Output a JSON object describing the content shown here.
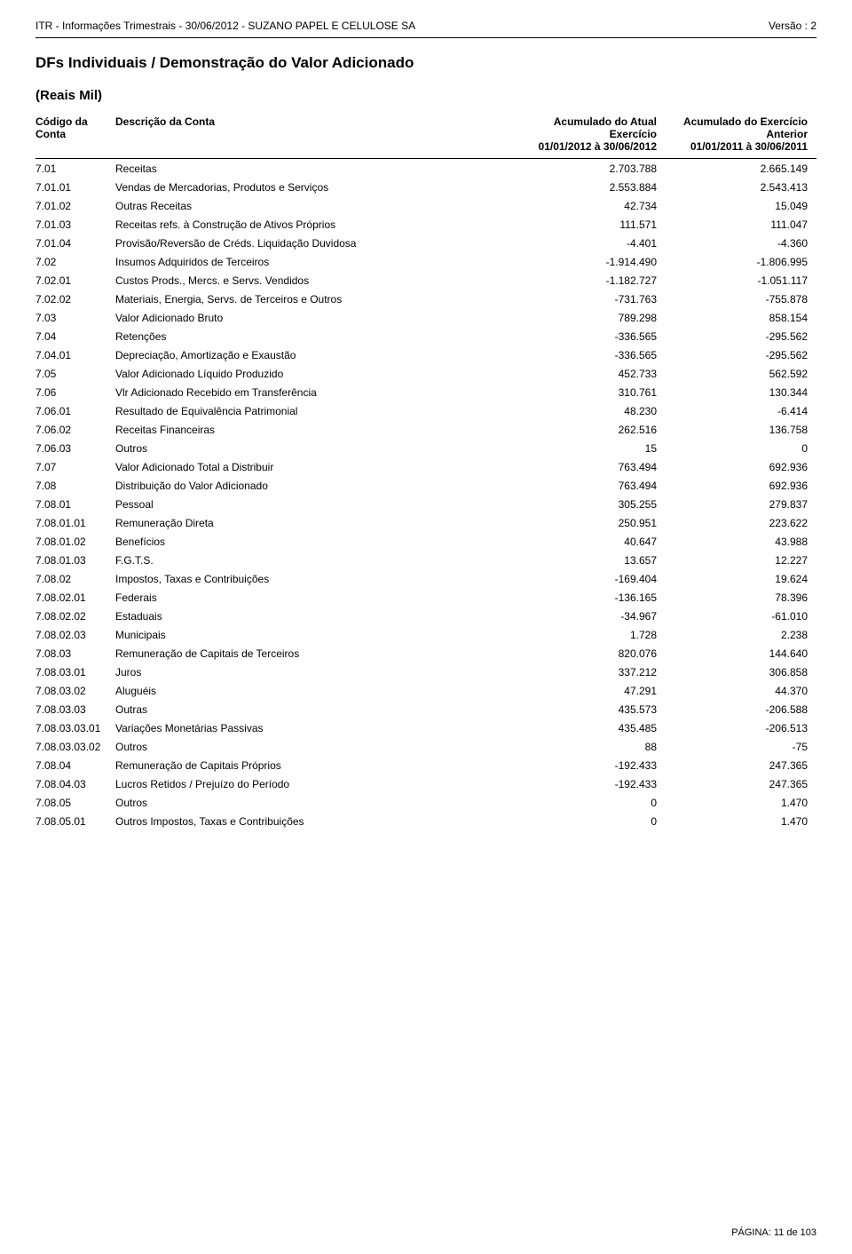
{
  "header": {
    "left": "ITR - Informações Trimestrais - 30/06/2012 - SUZANO PAPEL E CELULOSE SA",
    "right": "Versão : 2"
  },
  "title": "DFs Individuais / Demonstração do Valor Adicionado",
  "subtitle": "(Reais Mil)",
  "columns": {
    "code": "Código da Conta",
    "desc": "Descrição da Conta",
    "val1_line1": "Acumulado do Atual",
    "val1_line2": "Exercício",
    "val1_line3": "01/01/2012 à 30/06/2012",
    "val2_line1": "Acumulado do Exercício",
    "val2_line2": "Anterior",
    "val2_line3": "01/01/2011 à 30/06/2011"
  },
  "rows": [
    {
      "code": "7.01",
      "desc": "Receitas",
      "v1": "2.703.788",
      "v2": "2.665.149"
    },
    {
      "code": "7.01.01",
      "desc": "Vendas de Mercadorias, Produtos e Serviços",
      "v1": "2.553.884",
      "v2": "2.543.413"
    },
    {
      "code": "7.01.02",
      "desc": "Outras Receitas",
      "v1": "42.734",
      "v2": "15.049"
    },
    {
      "code": "7.01.03",
      "desc": "Receitas refs. à Construção de Ativos Próprios",
      "v1": "111.571",
      "v2": "111.047"
    },
    {
      "code": "7.01.04",
      "desc": "Provisão/Reversão de Créds. Liquidação Duvidosa",
      "v1": "-4.401",
      "v2": "-4.360"
    },
    {
      "code": "7.02",
      "desc": "Insumos Adquiridos de Terceiros",
      "v1": "-1.914.490",
      "v2": "-1.806.995"
    },
    {
      "code": "7.02.01",
      "desc": "Custos Prods., Mercs. e Servs. Vendidos",
      "v1": "-1.182.727",
      "v2": "-1.051.117"
    },
    {
      "code": "7.02.02",
      "desc": "Materiais, Energia, Servs. de Terceiros e Outros",
      "v1": "-731.763",
      "v2": "-755.878"
    },
    {
      "code": "7.03",
      "desc": "Valor Adicionado Bruto",
      "v1": "789.298",
      "v2": "858.154"
    },
    {
      "code": "7.04",
      "desc": "Retenções",
      "v1": "-336.565",
      "v2": "-295.562"
    },
    {
      "code": "7.04.01",
      "desc": "Depreciação, Amortização e Exaustão",
      "v1": "-336.565",
      "v2": "-295.562"
    },
    {
      "code": "7.05",
      "desc": "Valor Adicionado Líquido Produzido",
      "v1": "452.733",
      "v2": "562.592"
    },
    {
      "code": "7.06",
      "desc": "Vlr Adicionado Recebido em Transferência",
      "v1": "310.761",
      "v2": "130.344"
    },
    {
      "code": "7.06.01",
      "desc": "Resultado de Equivalência Patrimonial",
      "v1": "48.230",
      "v2": "-6.414"
    },
    {
      "code": "7.06.02",
      "desc": "Receitas Financeiras",
      "v1": "262.516",
      "v2": "136.758"
    },
    {
      "code": "7.06.03",
      "desc": "Outros",
      "v1": "15",
      "v2": "0"
    },
    {
      "code": "7.07",
      "desc": "Valor Adicionado Total a Distribuir",
      "v1": "763.494",
      "v2": "692.936"
    },
    {
      "code": "7.08",
      "desc": "Distribuição do Valor Adicionado",
      "v1": "763.494",
      "v2": "692.936"
    },
    {
      "code": "7.08.01",
      "desc": "Pessoal",
      "v1": "305.255",
      "v2": "279.837"
    },
    {
      "code": "7.08.01.01",
      "desc": "Remuneração Direta",
      "v1": "250.951",
      "v2": "223.622"
    },
    {
      "code": "7.08.01.02",
      "desc": "Benefícios",
      "v1": "40.647",
      "v2": "43.988"
    },
    {
      "code": "7.08.01.03",
      "desc": "F.G.T.S.",
      "v1": "13.657",
      "v2": "12.227"
    },
    {
      "code": "7.08.02",
      "desc": "Impostos, Taxas e Contribuições",
      "v1": "-169.404",
      "v2": "19.624"
    },
    {
      "code": "7.08.02.01",
      "desc": "Federais",
      "v1": "-136.165",
      "v2": "78.396"
    },
    {
      "code": "7.08.02.02",
      "desc": "Estaduais",
      "v1": "-34.967",
      "v2": "-61.010"
    },
    {
      "code": "7.08.02.03",
      "desc": "Municipais",
      "v1": "1.728",
      "v2": "2.238"
    },
    {
      "code": "7.08.03",
      "desc": "Remuneração de Capitais de Terceiros",
      "v1": "820.076",
      "v2": "144.640"
    },
    {
      "code": "7.08.03.01",
      "desc": "Juros",
      "v1": "337.212",
      "v2": "306.858"
    },
    {
      "code": "7.08.03.02",
      "desc": "Aluguéis",
      "v1": "47.291",
      "v2": "44.370"
    },
    {
      "code": "7.08.03.03",
      "desc": "Outras",
      "v1": "435.573",
      "v2": "-206.588"
    },
    {
      "code": "7.08.03.03.01",
      "desc": "Variações Monetárias Passivas",
      "v1": "435.485",
      "v2": "-206.513"
    },
    {
      "code": "7.08.03.03.02",
      "desc": "Outros",
      "v1": "88",
      "v2": "-75"
    },
    {
      "code": "7.08.04",
      "desc": "Remuneração de Capitais Próprios",
      "v1": "-192.433",
      "v2": "247.365"
    },
    {
      "code": "7.08.04.03",
      "desc": "Lucros Retidos / Prejuízo do Período",
      "v1": "-192.433",
      "v2": "247.365"
    },
    {
      "code": "7.08.05",
      "desc": "Outros",
      "v1": "0",
      "v2": "1.470"
    },
    {
      "code": "7.08.05.01",
      "desc": "Outros Impostos, Taxas e Contribuições",
      "v1": "0",
      "v2": "1.470"
    }
  ],
  "footer": "PÁGINA: 11 de 103"
}
